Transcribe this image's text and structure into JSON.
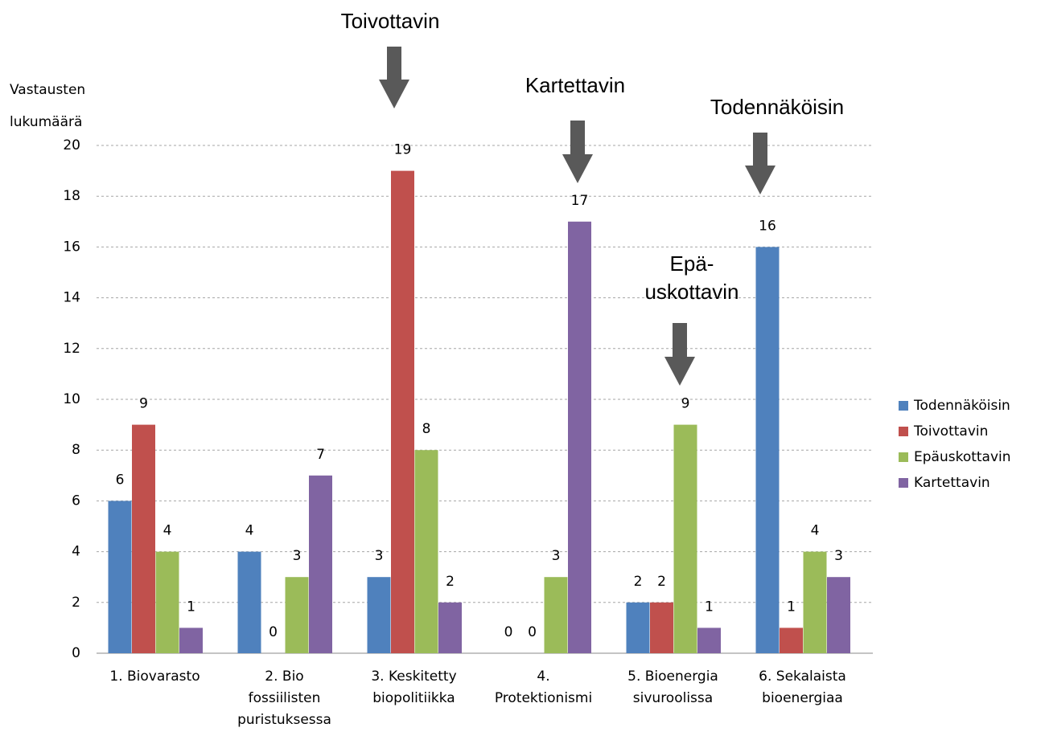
{
  "chart_data": {
    "type": "bar",
    "y_label": "Vastausten\nlukumäärä",
    "categories": [
      "1. Biovarasto",
      "2. Bio\nfossiilisten\npuristuksessa",
      "3. Keskitetty\nbiopolitiikka",
      "4.\nProtektionismi",
      "5. Bioenergia\nsivuroolissa",
      "6. Sekalaista\nbioenergiaa"
    ],
    "series": [
      {
        "name": "Todennäköisin",
        "color": "#4f81bd",
        "values": [
          6,
          4,
          3,
          0,
          2,
          16
        ]
      },
      {
        "name": "Toivottavin",
        "color": "#c0504d",
        "values": [
          9,
          0,
          19,
          0,
          2,
          1
        ]
      },
      {
        "name": "Epäuskottavin",
        "color": "#9bbb59",
        "values": [
          4,
          3,
          8,
          3,
          9,
          4
        ]
      },
      {
        "name": "Kartettavin",
        "color": "#8064a2",
        "values": [
          1,
          7,
          2,
          17,
          1,
          3
        ]
      }
    ],
    "ylim": [
      0,
      20
    ],
    "yticks": [
      0,
      2,
      4,
      6,
      8,
      10,
      12,
      14,
      16,
      18,
      20
    ],
    "grid": true,
    "legend": "right",
    "annotations": [
      {
        "text": "Toivottavin"
      },
      {
        "text": "Kartettavin"
      },
      {
        "text": "Todennäköisin"
      },
      {
        "text": "Epä-\nuskottavin"
      }
    ]
  }
}
